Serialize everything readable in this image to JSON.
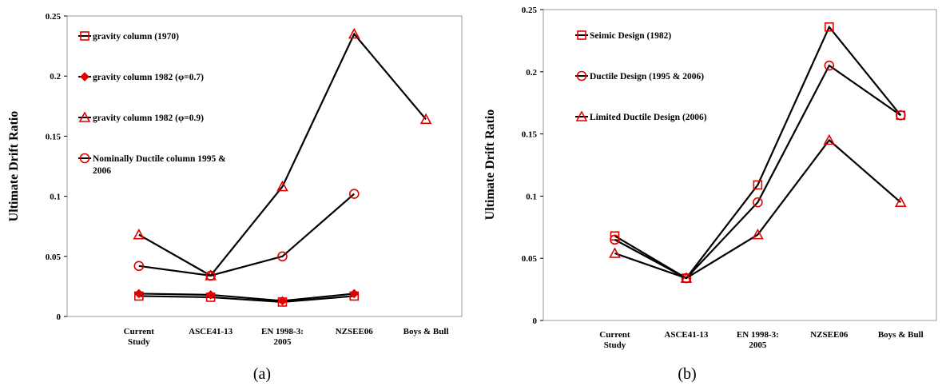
{
  "colors": {
    "line": "#000000",
    "marker": "#e00000"
  },
  "chart_data": [
    {
      "type": "line",
      "caption": "(a)",
      "ylabel": "Ultimate Drift Ratio",
      "ylim": [
        0,
        0.25
      ],
      "yticks": [
        "0",
        "0.05",
        "0.1",
        "0.15",
        "0.2",
        "0.25"
      ],
      "categories": [
        [
          "Current",
          "Study"
        ],
        [
          "ASCE41-13"
        ],
        [
          "EN 1998-3:",
          "2005"
        ],
        [
          "NZSEE06"
        ],
        [
          "Boys & Bull"
        ]
      ],
      "legend_position": "top-left",
      "series": [
        {
          "name": [
            "gravity column (1970)"
          ],
          "marker": "square",
          "values": [
            0.017,
            0.016,
            0.012,
            0.017,
            null
          ]
        },
        {
          "name": [
            "gravity column 1982 (φ=0.7)"
          ],
          "marker": "diamond",
          "values": [
            0.019,
            0.018,
            0.013,
            0.019,
            null
          ]
        },
        {
          "name": [
            "gravity column 1982 (φ=0.9)"
          ],
          "marker": "triangle",
          "values": [
            0.068,
            0.034,
            0.108,
            0.235,
            0.164
          ]
        },
        {
          "name": [
            "Nominally Ductile column 1995 &",
            "2006"
          ],
          "marker": "circle",
          "values": [
            0.042,
            0.034,
            0.05,
            0.102,
            null
          ]
        }
      ]
    },
    {
      "type": "line",
      "caption": "(b)",
      "ylabel": "Ultimate Drift Ratio",
      "ylim": [
        0,
        0.25
      ],
      "yticks": [
        "0",
        "0.05",
        "0.1",
        "0.15",
        "0.2",
        "0.25"
      ],
      "categories": [
        [
          "Current",
          "Study"
        ],
        [
          "ASCE41-13"
        ],
        [
          "EN 1998-3:",
          "2005"
        ],
        [
          "NZSEE06"
        ],
        [
          "Boys & Bull"
        ]
      ],
      "legend_position": "top-left",
      "series": [
        {
          "name": [
            "Seimic Design (1982)"
          ],
          "marker": "square",
          "values": [
            0.068,
            0.034,
            0.109,
            0.236,
            0.165
          ]
        },
        {
          "name": [
            "Ductile Design (1995 & 2006)"
          ],
          "marker": "circle",
          "values": [
            0.065,
            0.034,
            0.095,
            0.205,
            0.165
          ]
        },
        {
          "name": [
            "Limited Ductile Design (2006)"
          ],
          "marker": "triangle",
          "values": [
            0.054,
            0.034,
            0.069,
            0.145,
            0.095
          ]
        }
      ]
    }
  ]
}
